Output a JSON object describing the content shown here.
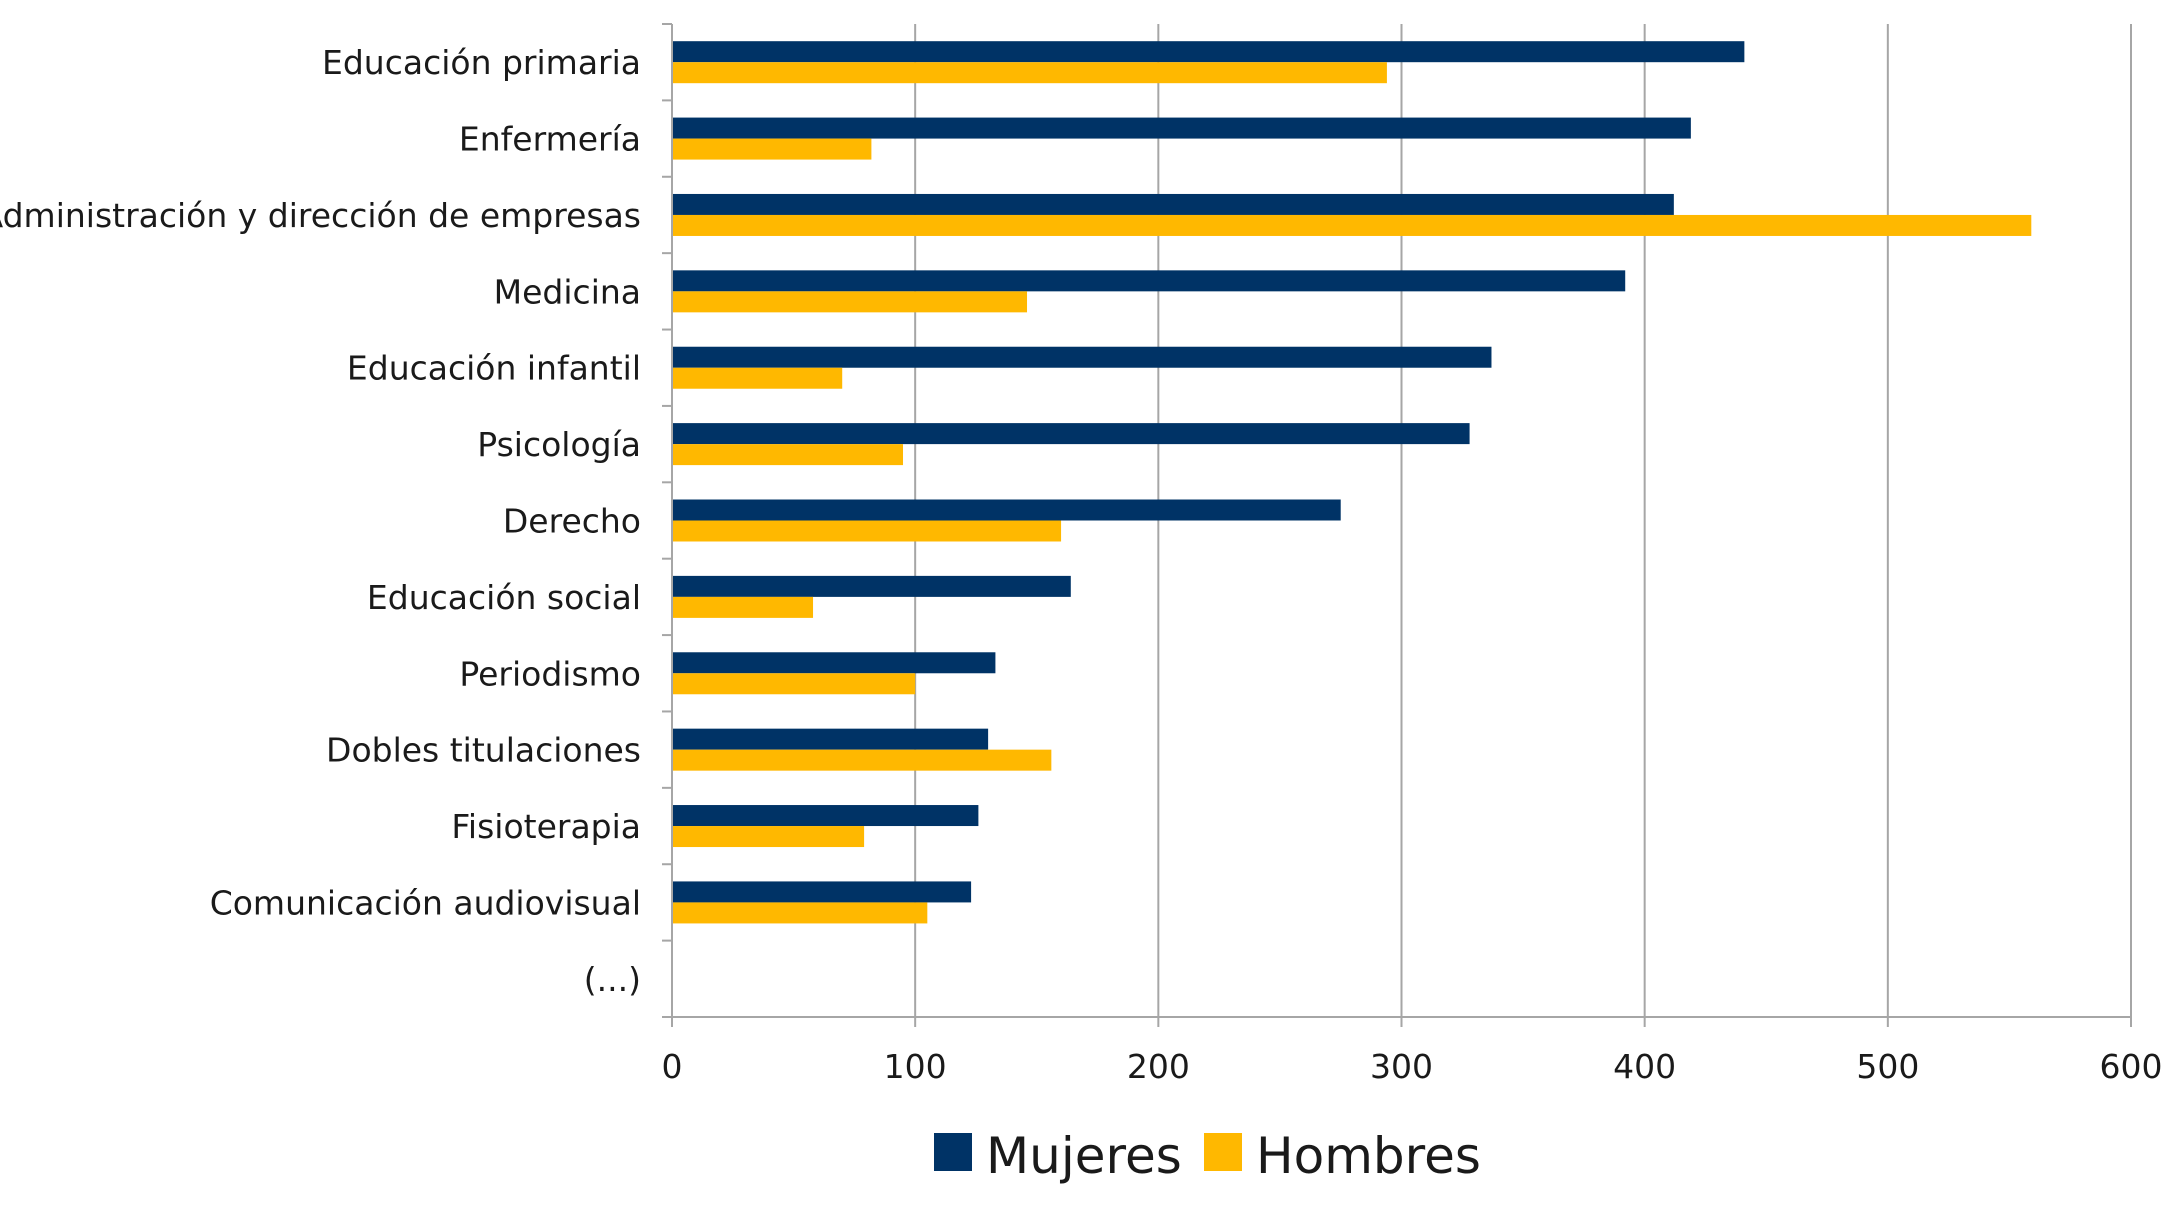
{
  "chart_data": {
    "type": "bar",
    "orientation": "horizontal",
    "categories": [
      "Educación primaria",
      "Enfermería",
      "Administración y dirección de empresas",
      "Medicina",
      "Educación infantil",
      "Psicología",
      "Derecho",
      "Educación social",
      "Periodismo",
      "Dobles titulaciones",
      "Fisioterapia",
      "Comunicación audiovisual",
      "(...)"
    ],
    "series": [
      {
        "name": "Mujeres",
        "color": "#003366",
        "values": [
          441,
          419,
          412,
          392,
          337,
          328,
          275,
          164,
          133,
          130,
          126,
          123,
          null
        ]
      },
      {
        "name": "Hombres",
        "color": "#FFB800",
        "values": [
          294,
          82,
          559,
          146,
          70,
          95,
          160,
          58,
          100,
          156,
          79,
          105,
          null
        ]
      }
    ],
    "title": "",
    "xlabel": "",
    "ylabel": "",
    "xlim": [
      0,
      600
    ],
    "xticks": [
      "0",
      "100",
      "200",
      "300",
      "400",
      "500",
      "600"
    ],
    "grid": "vertical",
    "legend_position": "bottom"
  }
}
